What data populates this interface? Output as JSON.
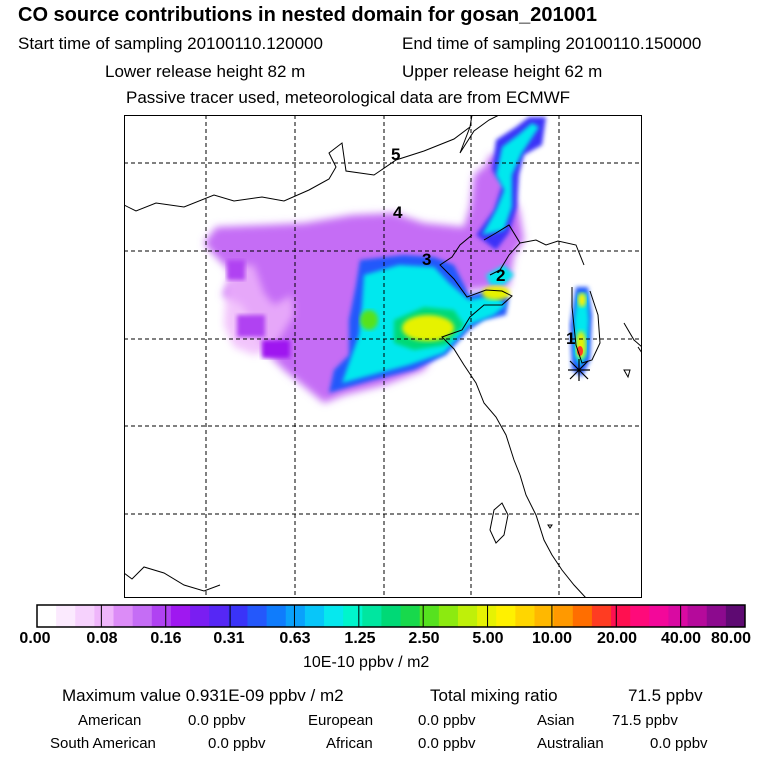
{
  "header": {
    "title": "CO  source contributions in nested domain for gosan_201001",
    "start_label": "Start time of sampling 20100110.120000",
    "end_label": "End time of sampling 20100110.150000",
    "lower_label": "Lower release height   82 m",
    "upper_label": "Upper release height   62 m",
    "note": "Passive tracer used, meteorological data are from ECMWF"
  },
  "chart_data": {
    "type": "heatmap",
    "title": "CO  source contributions in nested domain for gosan_201001",
    "map_labels": [
      "1",
      "2",
      "3",
      "4",
      "5"
    ],
    "colorbar": {
      "ticks": [
        "0.00",
        "0.08",
        "0.16",
        "0.31",
        "0.63",
        "1.25",
        "2.50",
        "5.00",
        "10.00",
        "20.00",
        "40.00",
        "80.00"
      ],
      "unit": "10E-10 ppbv / m2",
      "colors": [
        "#ffffff",
        "#fbeafe",
        "#f6d2fd",
        "#efb6fb",
        "#dc8cf7",
        "#c56df5",
        "#b042f2",
        "#9f18f0",
        "#7a1ef2",
        "#5627f5",
        "#3a33f8",
        "#2458fb",
        "#0f7cfc",
        "#0aa1fb",
        "#08c6f9",
        "#06e8ee",
        "#00f5cc",
        "#00e6a0",
        "#00d976",
        "#18d94c",
        "#56e21f",
        "#8cea10",
        "#bff009",
        "#e6f203",
        "#fff100",
        "#ffd600",
        "#ffb800",
        "#ff9900",
        "#ff6e00",
        "#ff3c22",
        "#ff1050",
        "#ff0a7a",
        "#f3089a",
        "#d90aa2",
        "#b50a9b",
        "#8c0a8e",
        "#5e0a72"
      ]
    }
  },
  "summary": {
    "max_label": "Maximum value  0.931E-09 ppbv / m2",
    "total_label": "Total mixing ratio",
    "total_value": "71.5 ppbv"
  },
  "regions": {
    "american": {
      "name": "American",
      "value": "0.0 ppbv"
    },
    "european": {
      "name": "European",
      "value": "0.0 ppbv"
    },
    "asian": {
      "name": "Asian",
      "value": "71.5 ppbv"
    },
    "south_american": {
      "name": "South American",
      "value": "0.0 ppbv"
    },
    "african": {
      "name": "African",
      "value": "0.0 ppbv"
    },
    "australian": {
      "name": "Australian",
      "value": "0.0 ppbv"
    }
  }
}
